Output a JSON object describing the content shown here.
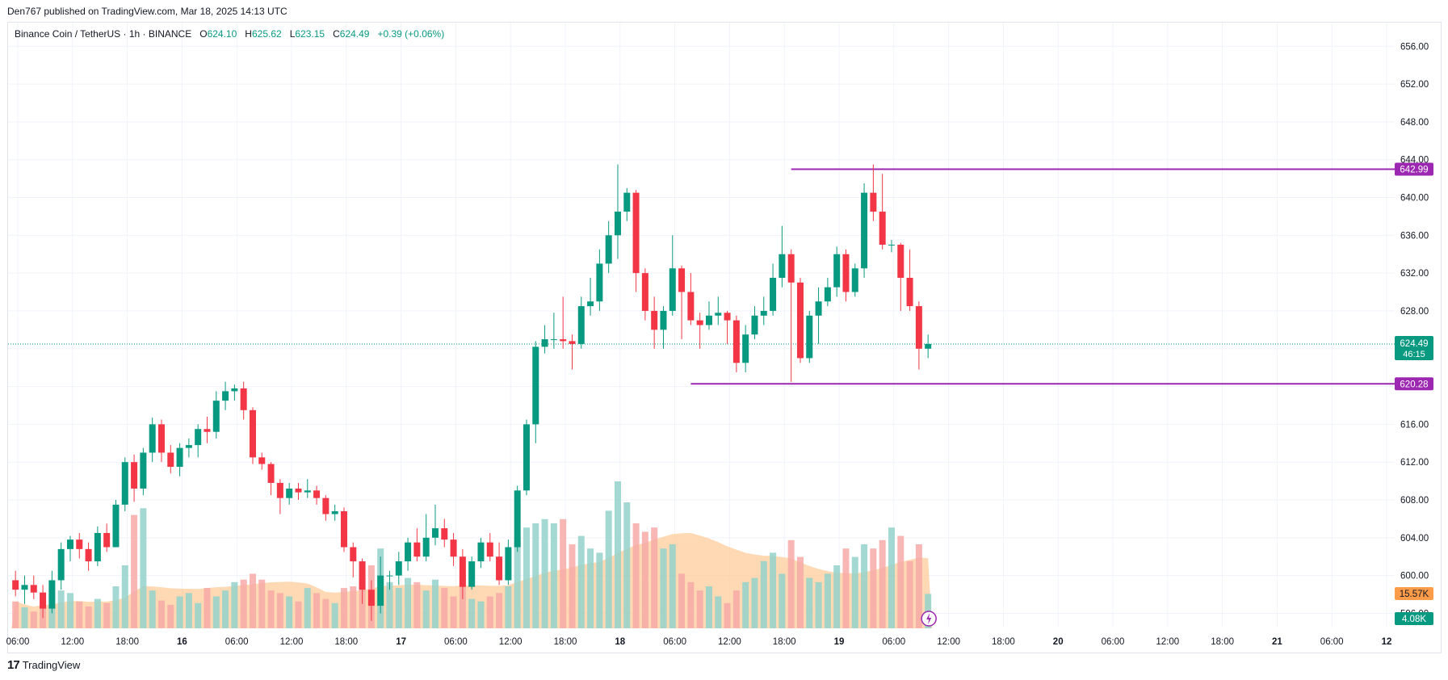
{
  "header": {
    "publisher": "Den767 published on TradingView.com, Mar 18, 2025 14:13 UTC"
  },
  "legend": {
    "symbol": "Binance Coin / TetherUS · 1h · BINANCE",
    "o_label": "O",
    "o_value": "624.10",
    "h_label": "H",
    "h_value": "625.62",
    "l_label": "L",
    "l_value": "623.15",
    "c_label": "C",
    "c_value": "624.49",
    "change": "+0.39 (+0.06%)"
  },
  "footer": {
    "brand": "TradingView",
    "logo_text": "17"
  },
  "colors": {
    "up": "#089981",
    "down": "#f23645",
    "level": "#9c27b0",
    "volume_up": "#94d1ca",
    "volume_down": "#f7a9a7",
    "volume_ma": "#ffcc99",
    "volume_ma_badge": "#ff9c4a",
    "grid": "#f0f3fa",
    "current_price_line": "#089981"
  },
  "chart_data": {
    "type": "candlestick",
    "interval": "1h",
    "ylim": [
      594.5,
      658.5
    ],
    "y_ticks": [
      "656.00",
      "652.00",
      "648.00",
      "644.00",
      "640.00",
      "636.00",
      "632.00",
      "628.00",
      "624.00",
      "620.00",
      "616.00",
      "612.00",
      "608.00",
      "604.00",
      "600.00",
      "596.00"
    ],
    "x_ticks": [
      "06:00",
      "12:00",
      "18:00",
      "16",
      "06:00",
      "12:00",
      "18:00",
      "17",
      "06:00",
      "12:00",
      "18:00",
      "18",
      "06:00",
      "12:00",
      "18:00",
      "19",
      "06:00",
      "12:00",
      "18:00",
      "20",
      "06:00",
      "12:00",
      "18:00",
      "21",
      "06:00",
      "12"
    ],
    "x_tick_hours": [
      0,
      6,
      12,
      18,
      24,
      30,
      36,
      42,
      48,
      54,
      60,
      66,
      72,
      78,
      84,
      90,
      96,
      102,
      108,
      114,
      120,
      126,
      132,
      138,
      144,
      150
    ],
    "first_candle_hour": -0.25,
    "candles": [
      [
        599.5,
        598.5,
        600.5,
        597.8
      ],
      [
        598.5,
        599.0,
        600.0,
        597.0
      ],
      [
        599.0,
        598.2,
        600.0,
        597.5
      ],
      [
        598.2,
        596.5,
        599.0,
        595.5
      ],
      [
        596.5,
        599.5,
        600.5,
        596.0
      ],
      [
        599.5,
        602.8,
        603.5,
        598.5
      ],
      [
        602.8,
        603.8,
        604.2,
        601.5
      ],
      [
        603.8,
        602.8,
        604.5,
        601.8
      ],
      [
        602.8,
        601.5,
        603.5,
        600.5
      ],
      [
        601.5,
        604.5,
        605.2,
        601.0
      ],
      [
        604.5,
        603.0,
        605.5,
        602.5
      ],
      [
        603.0,
        607.5,
        608.0,
        603.0
      ],
      [
        607.5,
        612.0,
        612.5,
        606.8
      ],
      [
        612.0,
        609.2,
        612.8,
        607.8
      ],
      [
        609.2,
        613.0,
        613.5,
        608.5
      ],
      [
        613.0,
        616.0,
        616.7,
        612.0
      ],
      [
        616.0,
        613.0,
        616.5,
        612.0
      ],
      [
        613.0,
        611.5,
        613.8,
        610.8
      ],
      [
        611.5,
        613.5,
        614.0,
        610.5
      ],
      [
        613.5,
        613.8,
        614.5,
        612.5
      ],
      [
        613.8,
        615.5,
        616.0,
        612.5
      ],
      [
        615.5,
        615.2,
        616.8,
        614.0
      ],
      [
        615.2,
        618.5,
        619.5,
        614.5
      ],
      [
        618.5,
        619.5,
        620.5,
        617.5
      ],
      [
        619.5,
        619.8,
        620.2,
        618.5
      ],
      [
        619.8,
        617.5,
        620.5,
        616.5
      ],
      [
        617.5,
        612.5,
        617.8,
        611.8
      ],
      [
        612.5,
        611.8,
        613.0,
        611.2
      ],
      [
        611.8,
        609.8,
        612.0,
        608.5
      ],
      [
        609.8,
        608.2,
        610.2,
        606.5
      ],
      [
        608.2,
        609.2,
        609.8,
        607.5
      ],
      [
        609.2,
        608.8,
        609.8,
        608.0
      ],
      [
        608.8,
        609.0,
        610.2,
        608.2
      ],
      [
        609.0,
        608.2,
        609.5,
        607.5
      ],
      [
        608.2,
        606.5,
        608.5,
        605.8
      ],
      [
        606.5,
        606.8,
        607.5,
        605.8
      ],
      [
        606.8,
        603.0,
        607.2,
        602.5
      ],
      [
        603.0,
        601.5,
        603.5,
        599.8
      ],
      [
        601.5,
        598.5,
        601.8,
        597.0
      ],
      [
        598.5,
        596.8,
        599.5,
        595.2
      ],
      [
        596.8,
        600.0,
        602.0,
        596.0
      ],
      [
        600.0,
        600.0,
        600.5,
        598.5
      ],
      [
        600.0,
        601.5,
        602.5,
        599.0
      ],
      [
        601.5,
        603.5,
        604.0,
        600.5
      ],
      [
        603.5,
        602.0,
        605.0,
        601.5
      ],
      [
        602.0,
        604.0,
        606.5,
        601.5
      ],
      [
        604.0,
        605.0,
        607.5,
        603.2
      ],
      [
        605.0,
        603.8,
        606.0,
        603.0
      ],
      [
        603.8,
        602.0,
        604.5,
        601.0
      ],
      [
        602.0,
        598.8,
        602.8,
        597.5
      ],
      [
        598.8,
        601.5,
        602.0,
        598.5
      ],
      [
        601.5,
        603.5,
        604.0,
        600.8
      ],
      [
        603.5,
        602.0,
        604.5,
        601.5
      ],
      [
        602.0,
        599.5,
        603.5,
        599.0
      ],
      [
        599.5,
        603.0,
        603.8,
        599.0
      ],
      [
        603.0,
        609.0,
        609.5,
        602.5
      ],
      [
        609.0,
        616.0,
        616.5,
        608.5
      ],
      [
        616.0,
        624.2,
        624.8,
        614.0
      ],
      [
        624.2,
        625.0,
        626.5,
        623.5
      ],
      [
        625.0,
        625.0,
        627.8,
        624.0
      ],
      [
        625.0,
        624.8,
        629.5,
        624.0
      ],
      [
        624.8,
        624.5,
        625.5,
        621.8
      ],
      [
        624.5,
        628.5,
        629.5,
        624.0
      ],
      [
        628.5,
        629.0,
        631.5,
        627.5
      ],
      [
        629.0,
        633.0,
        634.5,
        628.0
      ],
      [
        633.0,
        636.0,
        637.5,
        632.0
      ],
      [
        636.0,
        638.5,
        643.5,
        633.5
      ],
      [
        638.5,
        640.5,
        641.0,
        637.5
      ],
      [
        640.5,
        632.0,
        640.8,
        630.0
      ],
      [
        632.0,
        628.0,
        632.5,
        627.0
      ],
      [
        628.0,
        626.0,
        629.5,
        624.0
      ],
      [
        626.0,
        628.0,
        628.5,
        624.0
      ],
      [
        628.0,
        632.5,
        636.0,
        627.5
      ],
      [
        632.5,
        630.0,
        632.8,
        625.0
      ],
      [
        630.0,
        627.0,
        632.0,
        626.5
      ],
      [
        627.0,
        626.5,
        627.8,
        624.0
      ],
      [
        626.5,
        627.5,
        629.0,
        626.0
      ],
      [
        627.5,
        627.8,
        629.5,
        626.5
      ],
      [
        627.8,
        627.0,
        628.0,
        624.5
      ],
      [
        627.0,
        622.5,
        627.5,
        621.5
      ],
      [
        622.5,
        625.5,
        626.5,
        621.5
      ],
      [
        625.5,
        627.5,
        628.5,
        625.0
      ],
      [
        627.5,
        628.0,
        629.5,
        626.5
      ],
      [
        628.0,
        631.5,
        633.0,
        627.5
      ],
      [
        631.5,
        634.0,
        637.0,
        630.5
      ],
      [
        634.0,
        631.0,
        634.5,
        620.5
      ],
      [
        631.0,
        623.0,
        631.5,
        622.5
      ],
      [
        623.0,
        627.5,
        628.0,
        622.5
      ],
      [
        627.5,
        629.0,
        630.5,
        624.5
      ],
      [
        629.0,
        630.5,
        631.5,
        628.5
      ],
      [
        630.5,
        634.0,
        634.8,
        629.5
      ],
      [
        634.0,
        630.0,
        634.5,
        629.0
      ],
      [
        630.0,
        632.5,
        633.0,
        629.5
      ],
      [
        632.5,
        640.5,
        641.5,
        631.5
      ],
      [
        640.5,
        638.5,
        643.5,
        637.5
      ],
      [
        638.5,
        635.0,
        642.5,
        634.5
      ],
      [
        635.0,
        635.0,
        635.5,
        634.2
      ],
      [
        635.0,
        631.5,
        635.2,
        628.0
      ],
      [
        631.5,
        628.5,
        634.5,
        628.0
      ],
      [
        628.5,
        624.0,
        629.0,
        621.8
      ],
      [
        624.0,
        624.5,
        625.5,
        623.0
      ]
    ],
    "volume": [
      3.2,
      2.5,
      2.0,
      3.5,
      2.8,
      4.5,
      4.2,
      3.2,
      2.6,
      3.5,
      3.0,
      5.0,
      7.5,
      13.5,
      14.3,
      4.5,
      3.3,
      2.8,
      3.8,
      4.2,
      3.0,
      4.8,
      3.8,
      4.5,
      5.5,
      5.8,
      6.5,
      5.8,
      4.5,
      4.2,
      3.8,
      3.2,
      4.8,
      4.2,
      3.5,
      3.0,
      4.8,
      5.0,
      6.0,
      7.5,
      9.5,
      5.5,
      4.8,
      6.0,
      5.5,
      4.5,
      5.8,
      4.8,
      3.8,
      6.5,
      3.5,
      3.2,
      3.8,
      4.2,
      5.0,
      10.5,
      12.0,
      12.5,
      13.0,
      12.5,
      13.0,
      10.0,
      11.0,
      9.5,
      9.0,
      14.0,
      17.5,
      15.0,
      12.5,
      11.5,
      12.0,
      9.5,
      10.0,
      6.5,
      5.5,
      4.5,
      5.0,
      3.8,
      3.0,
      4.5,
      5.5,
      6.0,
      8.0,
      9.0,
      6.5,
      10.5,
      8.5,
      6.0,
      5.5,
      6.5,
      7.5,
      9.5,
      8.5,
      10.0,
      9.5,
      10.5,
      12.0,
      11.0,
      8.0,
      10.0,
      4.1
    ],
    "volume_unit": "K",
    "current_price": "624.49",
    "countdown": "46:15",
    "levels": [
      {
        "price": 642.99,
        "label": "642.99",
        "start_candle": 85
      },
      {
        "price": 620.28,
        "label": "620.28",
        "start_candle": 74
      }
    ],
    "volume_ma_label": "15.57K",
    "volume_label": "4.08K"
  }
}
